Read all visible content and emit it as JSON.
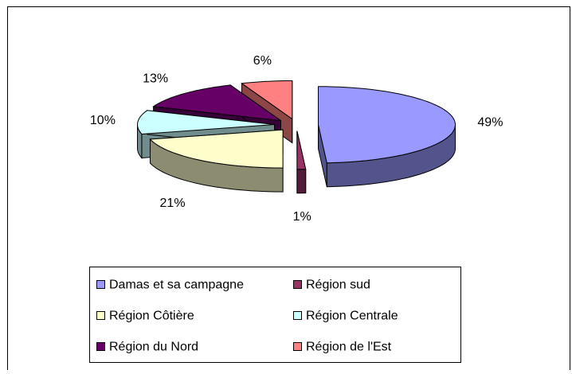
{
  "chart_data": {
    "type": "pie",
    "categories": [
      "Damas et sa campagne",
      "Région sud",
      "Région Côtière",
      "Région Centrale",
      "Région du Nord",
      "Région de l'Est"
    ],
    "values": [
      49,
      1,
      21,
      10,
      13,
      6
    ],
    "value_labels": [
      "49%",
      "1%",
      "21%",
      "10%",
      "13%",
      "6%"
    ],
    "colors": [
      "#9999ff",
      "#993366",
      "#ffffcc",
      "#ccffff",
      "#660066",
      "#ff8080"
    ],
    "exploded": true,
    "three_d": true,
    "legend": "bottom"
  }
}
